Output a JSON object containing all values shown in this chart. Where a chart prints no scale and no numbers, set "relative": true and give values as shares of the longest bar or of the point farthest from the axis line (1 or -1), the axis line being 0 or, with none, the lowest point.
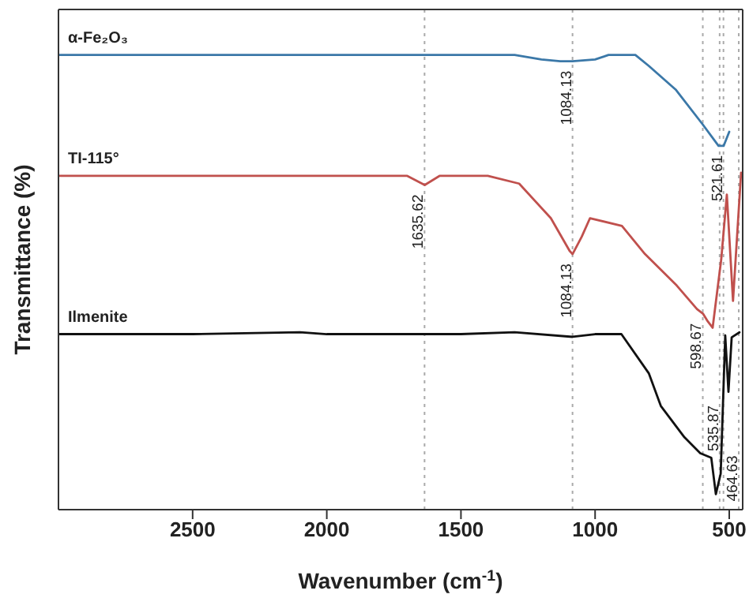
{
  "chart_data": {
    "type": "line",
    "relative": true,
    "xlabel": "Wavenumber (cm$^{-1}$)",
    "ylabel": "Transmittance (%)",
    "xlim": [
      3000,
      450
    ],
    "xticks": [
      2500,
      2000,
      1500,
      1000,
      500
    ],
    "marker": "none",
    "line_style": "solid",
    "series": [
      {
        "name": "α-Fe₂O₃",
        "color": "#3b78a8",
        "x": [
          3000,
          2500,
          2000,
          1500,
          1300,
          1200,
          1130,
          1084,
          1000,
          950,
          850,
          800,
          700,
          600,
          540,
          521,
          500
        ],
        "values": [
          1.0,
          1.0,
          1.0,
          1.0,
          1.0,
          0.99,
          0.986,
          0.986,
          0.99,
          1.0,
          1.0,
          0.976,
          0.924,
          0.848,
          0.8,
          0.8,
          0.831
        ]
      },
      {
        "name": "TI-115°",
        "color": "#c0504d",
        "x": [
          3000,
          2500,
          2000,
          1700,
          1635,
          1580,
          1400,
          1283,
          1165,
          1095,
          1084,
          1050,
          1019,
          900,
          814,
          696,
          620,
          598,
          580,
          562,
          530,
          509,
          486,
          456
        ],
        "values": [
          0.734,
          0.734,
          0.734,
          0.734,
          0.714,
          0.734,
          0.734,
          0.717,
          0.641,
          0.569,
          0.562,
          0.6,
          0.641,
          0.624,
          0.562,
          0.493,
          0.441,
          0.431,
          0.414,
          0.4,
          0.55,
          0.693,
          0.459,
          0.741
        ]
      },
      {
        "name": "Ilmenite",
        "color": "#111111",
        "x": [
          3000,
          2500,
          2100,
          2000,
          1500,
          1300,
          1084,
          1000,
          902,
          800,
          755,
          667,
          608,
          567,
          550,
          532,
          515,
          503,
          491,
          462
        ],
        "values": [
          0.386,
          0.386,
          0.39,
          0.386,
          0.386,
          0.39,
          0.38,
          0.386,
          0.386,
          0.3,
          0.228,
          0.159,
          0.124,
          0.114,
          0.034,
          0.079,
          0.383,
          0.259,
          0.379,
          0.39
        ]
      }
    ],
    "ref_lines": [
      {
        "axis": "x",
        "value": 1635.62,
        "line_style": "dotted",
        "color": "#aaaaaa"
      },
      {
        "axis": "x",
        "value": 1084.13,
        "line_style": "dotted",
        "color": "#aaaaaa"
      },
      {
        "axis": "x",
        "value": 598.67,
        "line_style": "dotted",
        "color": "#aaaaaa"
      },
      {
        "axis": "x",
        "value": 535.87,
        "line_style": "dotted",
        "color": "#aaaaaa"
      },
      {
        "axis": "x",
        "value": 521.61,
        "line_style": "dotted",
        "color": "#aaaaaa"
      },
      {
        "axis": "x",
        "value": 464.63,
        "line_style": "dotted",
        "color": "#aaaaaa"
      }
    ],
    "annotations": [
      {
        "text": "1084.13",
        "x": 1084.13,
        "y": 0.986
      },
      {
        "text": "1635.62",
        "x": 1635.62,
        "y": 0.714
      },
      {
        "text": "1084.13",
        "x": 1084.13,
        "y": 0.562
      },
      {
        "text": "598.67",
        "x": 598.67,
        "y": 0.431
      },
      {
        "text": "521.61",
        "x": 521.61,
        "y": 0.8
      },
      {
        "text": "535.87",
        "x": 535.87,
        "y": 0.25
      },
      {
        "text": "464.63",
        "x": 464.63,
        "y": 0.14
      }
    ]
  }
}
